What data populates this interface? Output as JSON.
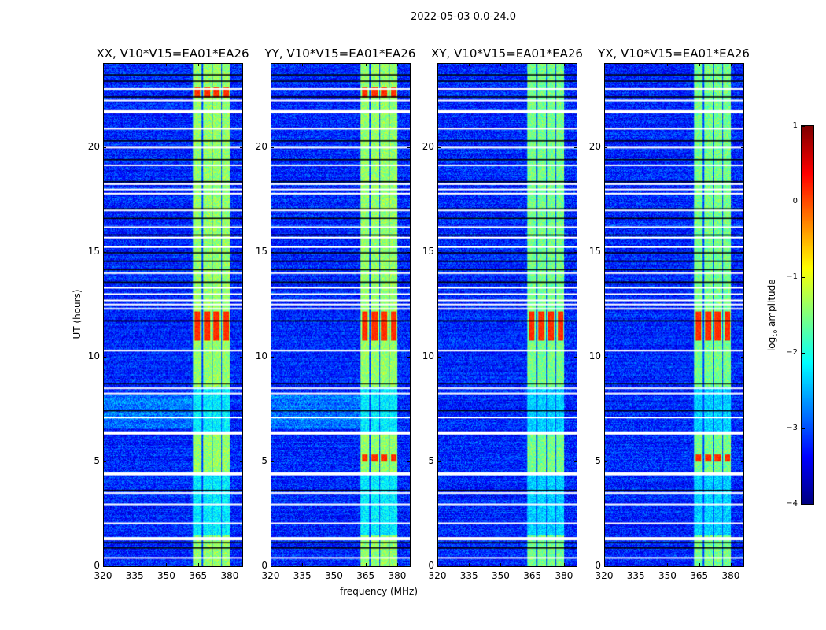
{
  "chart_data": {
    "type": "heatmap",
    "title": "2022-05-03 0.0-24.0",
    "xlabel": "frequency (MHz)",
    "ylabel": "UT (hours)",
    "xlim": [
      320,
      386
    ],
    "ylim": [
      0,
      24
    ],
    "xticks": [
      "320",
      "335",
      "350",
      "365",
      "380"
    ],
    "xtick_values": [
      320,
      335,
      350,
      365,
      380
    ],
    "yticks": [
      "0",
      "5",
      "10",
      "15",
      "20"
    ],
    "ytick_values": [
      0,
      5,
      10,
      15,
      20
    ],
    "panels": [
      {
        "title": "XX, V10*V15=EA01*EA26"
      },
      {
        "title": "YY, V10*V15=EA01*EA26"
      },
      {
        "title": "XY, V10*V15=EA01*EA26"
      },
      {
        "title": "YX, V10*V15=EA01*EA26"
      }
    ],
    "colorbar": {
      "label_prefix": "log",
      "label_sub": "10",
      "label_suffix": " amplitude",
      "range": [
        -4,
        1
      ],
      "ticks": [
        "1",
        "0",
        "−1",
        "−2",
        "−3",
        "−4"
      ],
      "tick_values": [
        1,
        0,
        -1,
        -2,
        -3,
        -4
      ],
      "colormap": "jet"
    },
    "background_level": -3.2,
    "signal_band_mhz": [
      362,
      380
    ],
    "flagged_hours": [
      0.4,
      1.35,
      2.05,
      2.95,
      3.5,
      4.45,
      6.4,
      7.1,
      8.25,
      8.5,
      10.3,
      12.3,
      12.5,
      12.7,
      13.0,
      13.3,
      14.0,
      15.25,
      15.7,
      16.2,
      17.0,
      17.8,
      18.0,
      18.25,
      19.15,
      20.0,
      20.9,
      21.75,
      22.25,
      22.8
    ],
    "dark_hours": [
      0.9,
      1.15,
      3.65,
      7.45,
      8.75,
      11.75,
      13.6,
      14.2,
      14.6,
      15.0,
      15.85,
      16.65,
      17.1,
      18.4,
      19.45,
      20.35,
      22.45,
      23.2,
      23.5
    ]
  }
}
